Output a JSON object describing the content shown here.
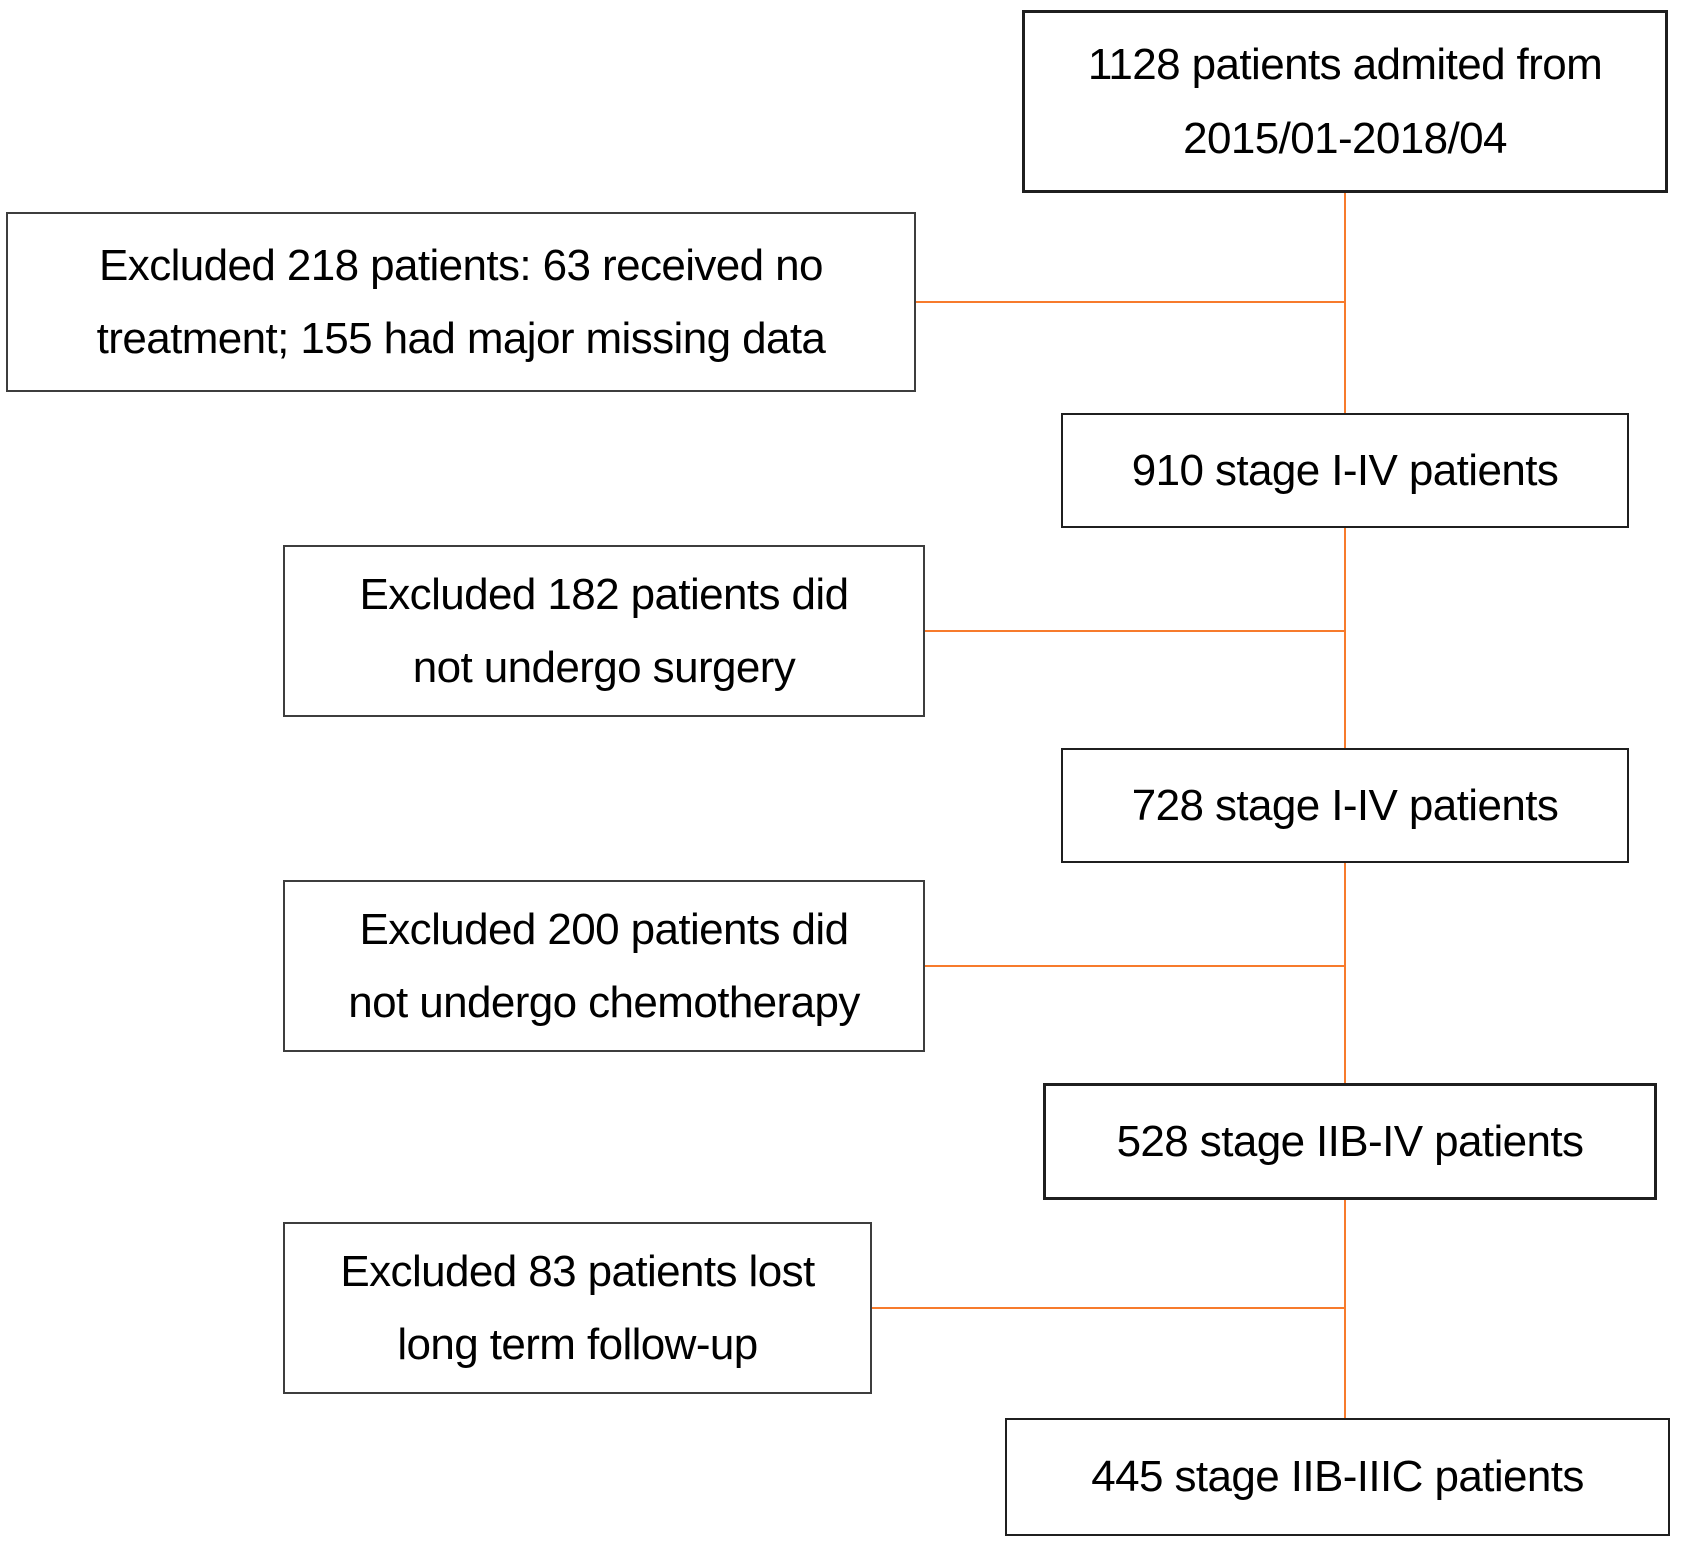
{
  "flowchart": {
    "kind": "patient-selection-flow-diagram",
    "colors": {
      "connector": "#F77B2C",
      "main_box_border": "#1F1F1F",
      "exclusion_box_border": "#3D3D3D",
      "text": "#000000",
      "background": "#FFFFFF"
    },
    "nodes": {
      "admitted": {
        "text": "1128 patients admited from\n2015/01-2018/04"
      },
      "excluded_218": {
        "text": "Excluded 218 patients: 63 received no\ntreatment; 155 had major missing data"
      },
      "stage_910": {
        "text": "910 stage I-IV patients"
      },
      "excluded_182": {
        "text": "Excluded 182 patients did\nnot undergo surgery"
      },
      "stage_728": {
        "text": "728 stage I-IV patients"
      },
      "excluded_200": {
        "text": "Excluded 200 patients did\nnot undergo chemotherapy"
      },
      "stage_528": {
        "text": "528 stage IIB-IV patients"
      },
      "excluded_83": {
        "text": "Excluded 83 patients lost\nlong term follow-up"
      },
      "stage_445": {
        "text": "445 stage IIB-IIIC patients"
      }
    },
    "edges": [
      {
        "from": "admitted",
        "to": "excluded_218",
        "type": "exclusion"
      },
      {
        "from": "admitted",
        "to": "stage_910",
        "type": "main"
      },
      {
        "from": "stage_910",
        "to": "excluded_182",
        "type": "exclusion"
      },
      {
        "from": "stage_910",
        "to": "stage_728",
        "type": "main"
      },
      {
        "from": "stage_728",
        "to": "excluded_200",
        "type": "exclusion"
      },
      {
        "from": "stage_728",
        "to": "stage_528",
        "type": "main"
      },
      {
        "from": "stage_528",
        "to": "excluded_83",
        "type": "exclusion"
      },
      {
        "from": "stage_528",
        "to": "stage_445",
        "type": "main"
      }
    ]
  }
}
